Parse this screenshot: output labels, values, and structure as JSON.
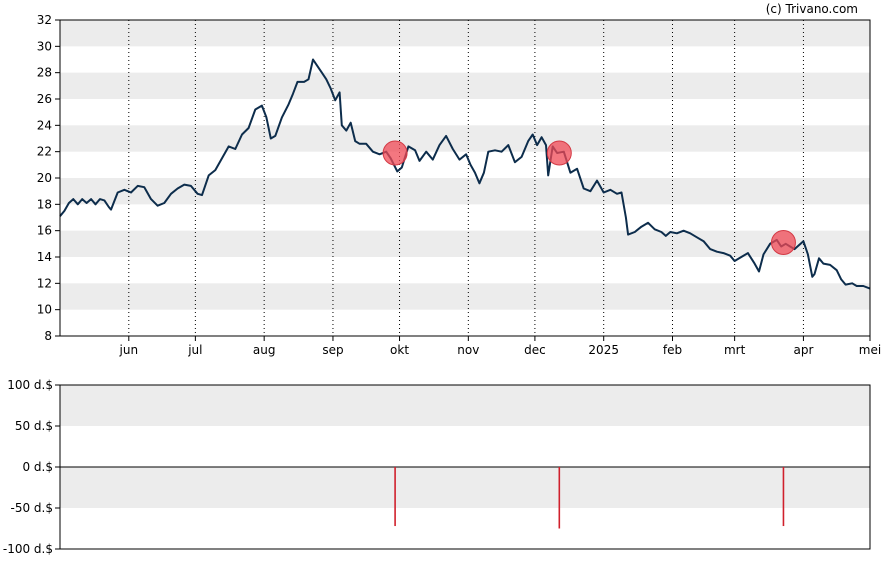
{
  "credit": "(c) Trivano.com",
  "chart_data": [
    {
      "type": "line",
      "panel": "price",
      "ylim": [
        8,
        32
      ],
      "y_ticks": [
        8,
        10,
        12,
        14,
        16,
        18,
        20,
        22,
        24,
        26,
        28,
        30,
        32
      ],
      "grid": "alternating horizontal bands with dotted vertical month lines",
      "x_labels": [
        "jun",
        "jul",
        "aug",
        "sep",
        "okt",
        "nov",
        "dec",
        "2025",
        "feb",
        "mrt",
        "apr",
        "mei"
      ],
      "x_domain": [
        "2024-05-01",
        "2025-05-01"
      ],
      "line_color": "#0d2d4c",
      "series": [
        {
          "points": [
            [
              "2024-05-01",
              17.1
            ],
            [
              "2024-05-03",
              17.5
            ],
            [
              "2024-05-05",
              18.1
            ],
            [
              "2024-05-07",
              18.4
            ],
            [
              "2024-05-09",
              18.0
            ],
            [
              "2024-05-11",
              18.4
            ],
            [
              "2024-05-13",
              18.1
            ],
            [
              "2024-05-15",
              18.4
            ],
            [
              "2024-05-17",
              18.0
            ],
            [
              "2024-05-19",
              18.4
            ],
            [
              "2024-05-21",
              18.3
            ],
            [
              "2024-05-23",
              17.8
            ],
            [
              "2024-05-24",
              17.6
            ],
            [
              "2024-05-27",
              18.9
            ],
            [
              "2024-05-30",
              19.1
            ],
            [
              "2024-06-02",
              18.9
            ],
            [
              "2024-06-05",
              19.4
            ],
            [
              "2024-06-08",
              19.3
            ],
            [
              "2024-06-11",
              18.4
            ],
            [
              "2024-06-14",
              17.9
            ],
            [
              "2024-06-17",
              18.1
            ],
            [
              "2024-06-20",
              18.8
            ],
            [
              "2024-06-23",
              19.2
            ],
            [
              "2024-06-26",
              19.5
            ],
            [
              "2024-06-29",
              19.4
            ],
            [
              "2024-07-02",
              18.8
            ],
            [
              "2024-07-04",
              18.7
            ],
            [
              "2024-07-07",
              20.2
            ],
            [
              "2024-07-10",
              20.6
            ],
            [
              "2024-07-13",
              21.5
            ],
            [
              "2024-07-16",
              22.4
            ],
            [
              "2024-07-19",
              22.2
            ],
            [
              "2024-07-22",
              23.3
            ],
            [
              "2024-07-25",
              23.8
            ],
            [
              "2024-07-28",
              25.2
            ],
            [
              "2024-07-31",
              25.5
            ],
            [
              "2024-08-02",
              24.6
            ],
            [
              "2024-08-04",
              23.0
            ],
            [
              "2024-08-06",
              23.2
            ],
            [
              "2024-08-09",
              24.6
            ],
            [
              "2024-08-12",
              25.6
            ],
            [
              "2024-08-14",
              26.4
            ],
            [
              "2024-08-16",
              27.3
            ],
            [
              "2024-08-19",
              27.3
            ],
            [
              "2024-08-21",
              27.5
            ],
            [
              "2024-08-23",
              29.0
            ],
            [
              "2024-08-25",
              28.5
            ],
            [
              "2024-08-27",
              28.0
            ],
            [
              "2024-08-29",
              27.5
            ],
            [
              "2024-08-31",
              26.8
            ],
            [
              "2024-09-02",
              25.9
            ],
            [
              "2024-09-04",
              26.5
            ],
            [
              "2024-09-05",
              24.0
            ],
            [
              "2024-09-07",
              23.6
            ],
            [
              "2024-09-09",
              24.2
            ],
            [
              "2024-09-11",
              22.8
            ],
            [
              "2024-09-13",
              22.6
            ],
            [
              "2024-09-16",
              22.6
            ],
            [
              "2024-09-19",
              22.0
            ],
            [
              "2024-09-22",
              21.8
            ],
            [
              "2024-09-25",
              22.0
            ],
            [
              "2024-09-27",
              21.5
            ],
            [
              "2024-09-30",
              20.5
            ],
            [
              "2024-10-02",
              20.8
            ],
            [
              "2024-10-05",
              22.4
            ],
            [
              "2024-10-08",
              22.1
            ],
            [
              "2024-10-10",
              21.3
            ],
            [
              "2024-10-13",
              22.0
            ],
            [
              "2024-10-16",
              21.4
            ],
            [
              "2024-10-19",
              22.5
            ],
            [
              "2024-10-22",
              23.2
            ],
            [
              "2024-10-25",
              22.2
            ],
            [
              "2024-10-28",
              21.4
            ],
            [
              "2024-10-31",
              21.8
            ],
            [
              "2024-11-02",
              21.0
            ],
            [
              "2024-11-04",
              20.4
            ],
            [
              "2024-11-06",
              19.6
            ],
            [
              "2024-11-08",
              20.4
            ],
            [
              "2024-11-10",
              22.0
            ],
            [
              "2024-11-13",
              22.1
            ],
            [
              "2024-11-16",
              22.0
            ],
            [
              "2024-11-19",
              22.5
            ],
            [
              "2024-11-22",
              21.2
            ],
            [
              "2024-11-25",
              21.6
            ],
            [
              "2024-11-28",
              22.8
            ],
            [
              "2024-11-30",
              23.3
            ],
            [
              "2024-12-02",
              22.5
            ],
            [
              "2024-12-04",
              23.1
            ],
            [
              "2024-12-06",
              22.5
            ],
            [
              "2024-12-07",
              20.2
            ],
            [
              "2024-12-09",
              22.4
            ],
            [
              "2024-12-11",
              21.9
            ],
            [
              "2024-12-14",
              22.0
            ],
            [
              "2024-12-17",
              20.4
            ],
            [
              "2024-12-20",
              20.7
            ],
            [
              "2024-12-23",
              19.2
            ],
            [
              "2024-12-26",
              19.0
            ],
            [
              "2024-12-29",
              19.8
            ],
            [
              "2025-01-01",
              18.9
            ],
            [
              "2025-01-04",
              19.1
            ],
            [
              "2025-01-07",
              18.8
            ],
            [
              "2025-01-09",
              18.9
            ],
            [
              "2025-01-11",
              17.0
            ],
            [
              "2025-01-12",
              15.7
            ],
            [
              "2025-01-15",
              15.9
            ],
            [
              "2025-01-18",
              16.3
            ],
            [
              "2025-01-21",
              16.6
            ],
            [
              "2025-01-24",
              16.1
            ],
            [
              "2025-01-27",
              15.9
            ],
            [
              "2025-01-29",
              15.6
            ],
            [
              "2025-01-31",
              15.9
            ],
            [
              "2025-02-03",
              15.8
            ],
            [
              "2025-02-06",
              16.0
            ],
            [
              "2025-02-09",
              15.8
            ],
            [
              "2025-02-12",
              15.5
            ],
            [
              "2025-02-15",
              15.2
            ],
            [
              "2025-02-18",
              14.6
            ],
            [
              "2025-02-21",
              14.4
            ],
            [
              "2025-02-24",
              14.3
            ],
            [
              "2025-02-27",
              14.1
            ],
            [
              "2025-03-01",
              13.7
            ],
            [
              "2025-03-04",
              14.0
            ],
            [
              "2025-03-07",
              14.3
            ],
            [
              "2025-03-10",
              13.5
            ],
            [
              "2025-03-12",
              12.9
            ],
            [
              "2025-03-14",
              14.2
            ],
            [
              "2025-03-17",
              15.0
            ],
            [
              "2025-03-20",
              15.3
            ],
            [
              "2025-03-22",
              14.8
            ],
            [
              "2025-03-24",
              15.0
            ],
            [
              "2025-03-26",
              14.8
            ],
            [
              "2025-03-28",
              14.6
            ],
            [
              "2025-03-30",
              14.9
            ],
            [
              "2025-04-01",
              15.2
            ],
            [
              "2025-04-03",
              14.2
            ],
            [
              "2025-04-05",
              12.5
            ],
            [
              "2025-04-06",
              12.7
            ],
            [
              "2025-04-08",
              13.9
            ],
            [
              "2025-04-10",
              13.5
            ],
            [
              "2025-04-13",
              13.4
            ],
            [
              "2025-04-16",
              13.0
            ],
            [
              "2025-04-18",
              12.3
            ],
            [
              "2025-04-20",
              11.9
            ],
            [
              "2025-04-23",
              12.0
            ],
            [
              "2025-04-25",
              11.8
            ],
            [
              "2025-04-28",
              11.8
            ],
            [
              "2025-05-01",
              11.6
            ]
          ]
        }
      ],
      "markers": [
        {
          "date": "2024-09-29",
          "value": 21.9,
          "color": "#f04a55"
        },
        {
          "date": "2024-12-12",
          "value": 21.9,
          "color": "#f04a55"
        },
        {
          "date": "2025-03-23",
          "value": 15.1,
          "color": "#f04a55"
        }
      ]
    },
    {
      "type": "bar",
      "panel": "dividend",
      "ylim": [
        -100,
        100
      ],
      "y_ticks": [
        "100 d.$",
        "50 d.$",
        "0 d.$",
        "-50 d.$",
        "-100 d.$"
      ],
      "y_tick_values": [
        100,
        50,
        0,
        -50,
        -100
      ],
      "bar_color": "#d0202c",
      "bars": [
        {
          "date": "2024-09-29",
          "value": -72
        },
        {
          "date": "2024-12-12",
          "value": -75
        },
        {
          "date": "2025-03-23",
          "value": -72
        }
      ]
    }
  ]
}
